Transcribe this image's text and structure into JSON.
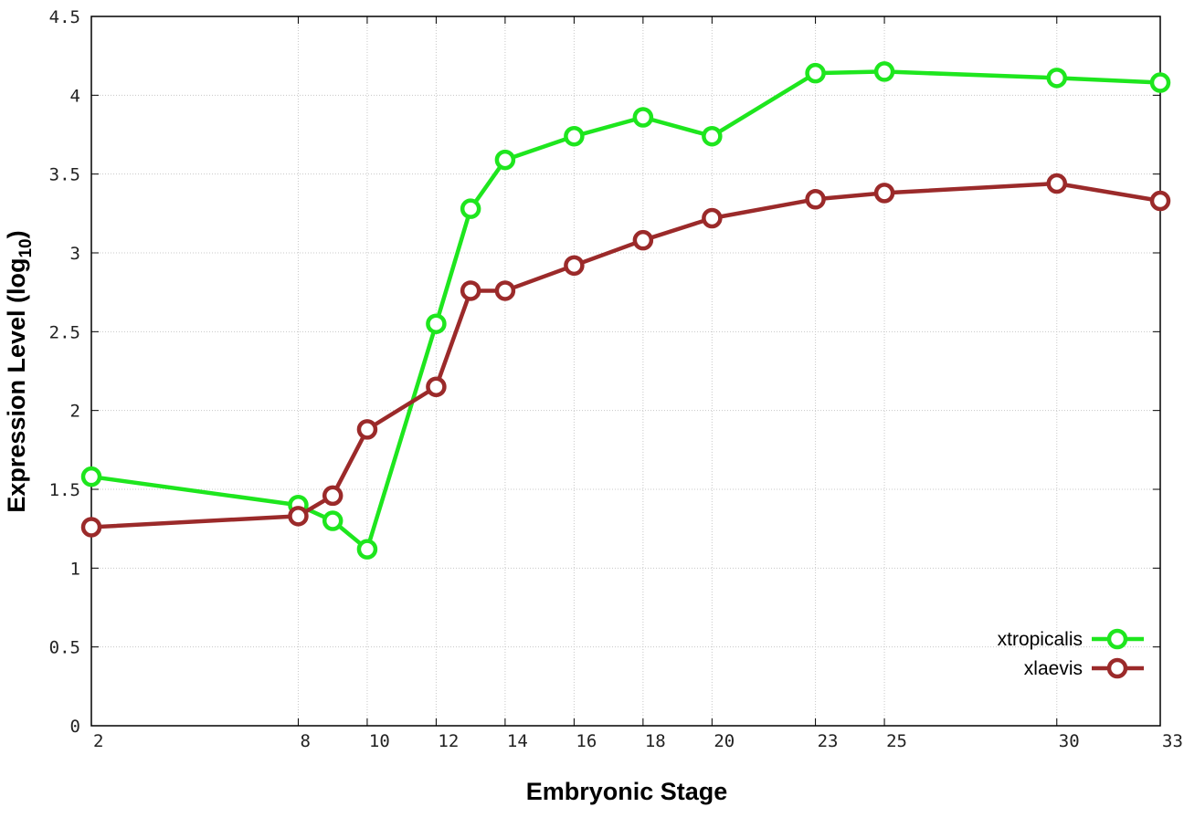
{
  "chart_data": {
    "type": "line",
    "title": "",
    "xlabel": "Embryonic Stage",
    "ylabel": "Expression Level (log",
    "ylabel_subscript": "10",
    "ylabel_close": ")",
    "xlim": [
      2,
      33
    ],
    "ylim": [
      0,
      4.5
    ],
    "x_ticks": [
      2,
      8,
      10,
      12,
      14,
      16,
      18,
      20,
      23,
      25,
      30,
      33
    ],
    "y_ticks": [
      0,
      0.5,
      1,
      1.5,
      2,
      2.5,
      3,
      3.5,
      4,
      4.5
    ],
    "y_tick_labels": [
      "0",
      "0.5",
      "1",
      "1.5",
      "2",
      "2.5",
      "3",
      "3.5",
      "4",
      "4.5"
    ],
    "grid": true,
    "legend_position": "bottom-right",
    "x": [
      2,
      8,
      9,
      10,
      12,
      13,
      14,
      16,
      18,
      20,
      23,
      25,
      30,
      33
    ],
    "series": [
      {
        "name": "xtropicalis",
        "color": "#1ee61e",
        "values": [
          1.58,
          1.4,
          1.3,
          1.12,
          2.55,
          3.28,
          3.59,
          3.74,
          3.86,
          3.74,
          4.14,
          4.15,
          4.11,
          4.08
        ]
      },
      {
        "name": "xlaevis",
        "color": "#9b2a2a",
        "values": [
          1.26,
          1.33,
          1.46,
          1.88,
          2.15,
          2.76,
          2.76,
          2.92,
          3.08,
          3.22,
          3.34,
          3.38,
          3.44,
          3.33
        ]
      }
    ]
  }
}
